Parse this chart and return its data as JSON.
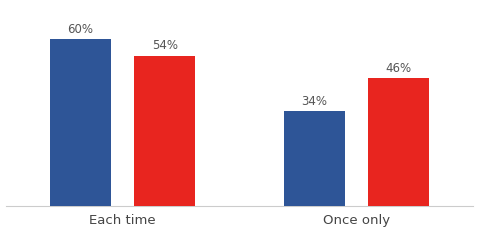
{
  "categories": [
    "Each time",
    "Once only"
  ],
  "series1_values": [
    60,
    34
  ],
  "series2_values": [
    54,
    46
  ],
  "series1_color": "#2E5597",
  "series2_color": "#E8251F",
  "bar_width": 0.13,
  "group_positions": [
    0.25,
    0.75
  ],
  "bar_gap": 0.05,
  "ylim": [
    0,
    72
  ],
  "label_fontsize": 8.5,
  "xlabel_fontsize": 9.5,
  "background_color": "#ffffff",
  "label_color": "#555555",
  "xlabel_color": "#444444"
}
